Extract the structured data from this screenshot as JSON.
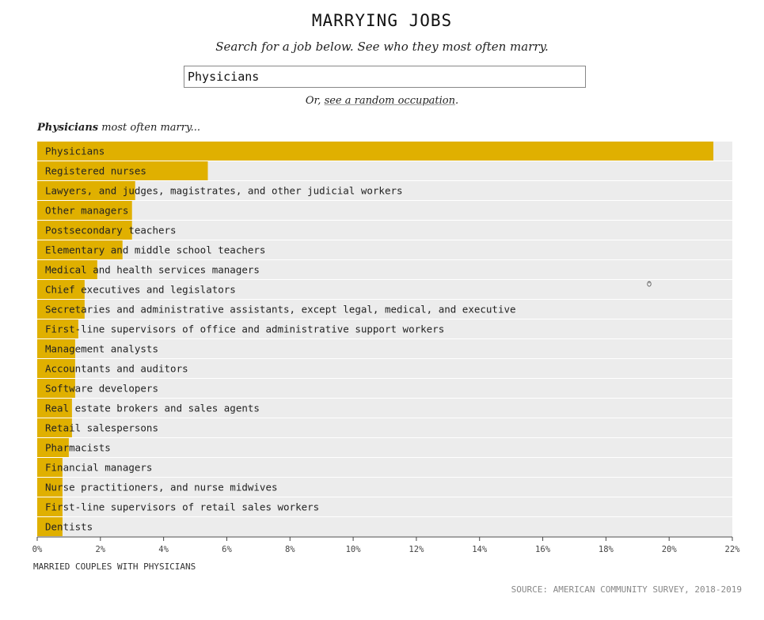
{
  "page": {
    "title": "MARRYING JOBS",
    "subtitle": "Search for a job below. See who they most often marry.",
    "search": {
      "value": "Physicians"
    },
    "random": {
      "prefix": "Or, ",
      "link": "see a random occupation",
      "suffix": "."
    },
    "heading": {
      "job": "Physicians",
      "rest": " most often marry..."
    },
    "source": "SOURCE: AMERICAN COMMUNITY SURVEY, 2018-2019",
    "colors": {
      "bar": "#e0b000",
      "track": "#ececec",
      "text": "#222222"
    }
  },
  "chart_data": {
    "type": "bar",
    "orientation": "horizontal",
    "xlabel": "MARRIED COUPLES WITH PHYSICIANS",
    "xlim": [
      0,
      22
    ],
    "xticks": [
      "0%",
      "2%",
      "4%",
      "6%",
      "8%",
      "10%",
      "12%",
      "14%",
      "16%",
      "18%",
      "20%",
      "22%"
    ],
    "categories": [
      "Physicians",
      "Registered nurses",
      "Lawyers, and judges, magistrates, and other judicial workers",
      "Other managers",
      "Postsecondary teachers",
      "Elementary and middle school teachers",
      "Medical and health services managers",
      "Chief executives and legislators",
      "Secretaries and administrative assistants, except legal, medical, and executive",
      "First-line supervisors of office and administrative support workers",
      "Management analysts",
      "Accountants and auditors",
      "Software developers",
      "Real estate brokers and sales agents",
      "Retail salespersons",
      "Pharmacists",
      "Financial managers",
      "Nurse practitioners, and nurse midwives",
      "First-line supervisors of retail sales workers",
      "Dentists"
    ],
    "values": [
      21.4,
      5.4,
      3.1,
      3.0,
      3.0,
      2.7,
      1.9,
      1.5,
      1.5,
      1.3,
      1.2,
      1.2,
      1.2,
      1.1,
      1.1,
      1.0,
      0.8,
      0.8,
      0.8,
      0.8
    ]
  }
}
